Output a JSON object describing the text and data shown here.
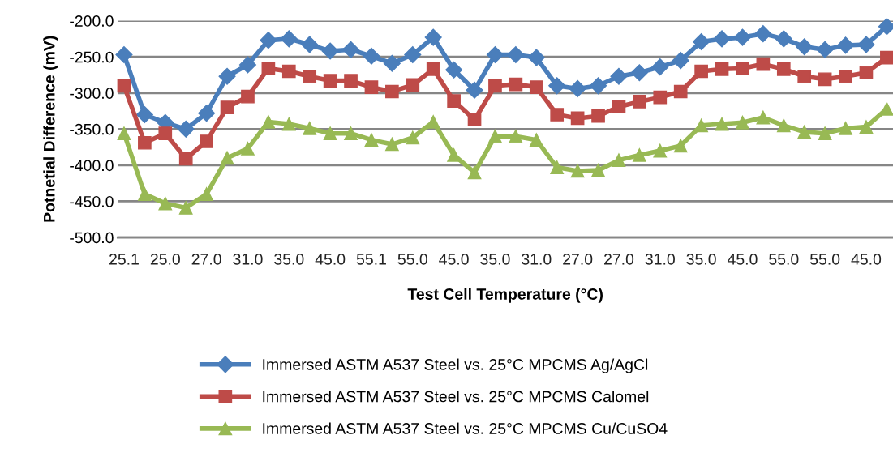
{
  "chart_data": {
    "type": "line",
    "xlabel": "Test Cell Temperature (°C)",
    "ylabel": "Potnetial Difference (mV)",
    "categories": [
      "25.1",
      null,
      "25.0",
      null,
      "27.0",
      null,
      "31.0",
      null,
      "35.0",
      null,
      "45.0",
      null,
      "55.1",
      null,
      "55.0",
      null,
      "45.0",
      null,
      "35.0",
      null,
      "31.0",
      null,
      "27.0",
      null,
      "27.0",
      null,
      "31.0",
      null,
      "35.0",
      null,
      "45.0",
      null,
      "55.0",
      null,
      "55.0",
      null,
      "45.0",
      null
    ],
    "series": [
      {
        "name": "Immersed ASTM A537 Steel vs. 25°C MPCMS Ag/AgCl",
        "color": "#4a7ebb",
        "marker": "diamond",
        "values": [
          -247,
          -330,
          -341,
          -350,
          -328,
          -277,
          -261,
          -227,
          -225,
          -233,
          -242,
          -240,
          -249,
          -259,
          -247,
          -223,
          -268,
          -296,
          -247,
          -247,
          -251,
          -290,
          -294,
          -290,
          -277,
          -272,
          -264,
          -255,
          -229,
          -225,
          -223,
          -218,
          -225,
          -236,
          -240,
          -234,
          -233,
          -208
        ]
      },
      {
        "name": "Immersed ASTM A537 Steel vs. 25°C MPCMS Calomel",
        "color": "#be4b48",
        "marker": "square",
        "values": [
          -290,
          -369,
          -356,
          -391,
          -367,
          -320,
          -305,
          -266,
          -270,
          -277,
          -283,
          -283,
          -292,
          -298,
          -289,
          -267,
          -311,
          -337,
          -290,
          -288,
          -292,
          -330,
          -335,
          -332,
          -319,
          -312,
          -306,
          -298,
          -270,
          -267,
          -266,
          -260,
          -267,
          -277,
          -281,
          -277,
          -272,
          -251
        ]
      },
      {
        "name": "Immersed ASTM A537 Steel vs. 25°C MPCMS Cu/CuSO4",
        "color": "#98b954",
        "marker": "triangle",
        "values": [
          -356,
          -440,
          -453,
          -459,
          -440,
          -390,
          -377,
          -340,
          -343,
          -349,
          -356,
          -356,
          -365,
          -371,
          -362,
          -340,
          -386,
          -410,
          -360,
          -360,
          -365,
          -403,
          -408,
          -407,
          -393,
          -386,
          -380,
          -373,
          -345,
          -343,
          -341,
          -334,
          -345,
          -354,
          -356,
          -349,
          -347,
          -322
        ]
      }
    ],
    "ylim": [
      -500,
      -200
    ],
    "yticks": [
      {
        "value": -500,
        "label": "-500.0"
      },
      {
        "value": -450,
        "label": "-450.0"
      },
      {
        "value": -400,
        "label": "-400.0"
      },
      {
        "value": -350,
        "label": "-350.0"
      },
      {
        "value": -300,
        "label": "-300.0"
      },
      {
        "value": -250,
        "label": "-250.0"
      },
      {
        "value": -200,
        "label": "-200.0"
      }
    ],
    "grid": "y",
    "legend": "bottom",
    "line_style": "solid"
  }
}
